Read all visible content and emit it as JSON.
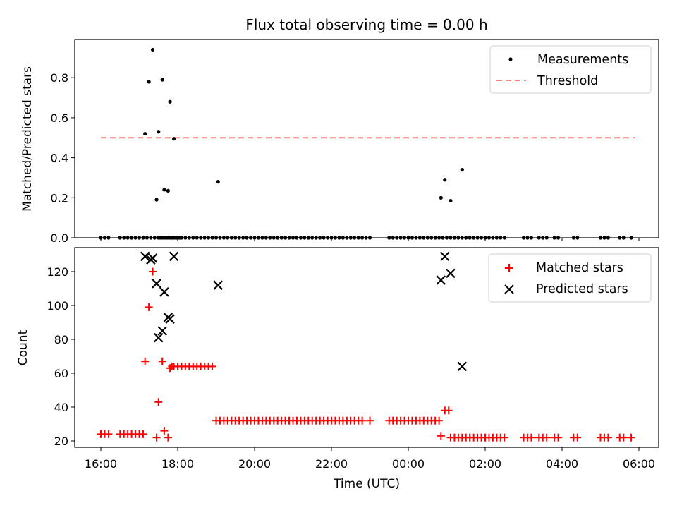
{
  "chart_data": [
    {
      "type": "scatter",
      "title": "Flux total observing time = 0.00 h",
      "ylabel": "Matched/Predicted stars",
      "xlabel": "",
      "ylim": [
        0,
        0.98
      ],
      "yticks": [
        "0.0",
        "0.2",
        "0.4",
        "0.6",
        "0.8"
      ],
      "legend": {
        "placement": "top-right",
        "entries": [
          "Measurements",
          "Threshold"
        ]
      },
      "threshold": {
        "name": "Threshold",
        "value": 0.5,
        "x_range": [
          0.0,
          13.9
        ],
        "color": "#ff7f7f"
      },
      "series": [
        {
          "name": "Measurements",
          "color": "#000000",
          "x": [
            0.0,
            0.1,
            0.2,
            0.5,
            0.6,
            0.7,
            0.8,
            0.9,
            1.0,
            1.1,
            1.2,
            1.3,
            1.4,
            1.5,
            1.55,
            1.6,
            1.65,
            1.7,
            1.75,
            1.8,
            1.85,
            1.9,
            1.95,
            2.0,
            2.05,
            2.1,
            2.2,
            2.3,
            2.4,
            2.5,
            2.6,
            2.7,
            2.8,
            2.9,
            3.0,
            3.1,
            3.2,
            3.3,
            3.4,
            3.5,
            3.6,
            3.7,
            3.8,
            3.9,
            4.0,
            4.1,
            4.2,
            4.3,
            4.4,
            4.5,
            4.6,
            4.7,
            4.8,
            4.9,
            5.0,
            5.1,
            5.2,
            5.3,
            5.4,
            5.5,
            5.6,
            5.7,
            5.8,
            5.9,
            6.0,
            6.1,
            6.2,
            6.3,
            6.4,
            6.5,
            6.6,
            6.7,
            6.8,
            6.9,
            7.0,
            7.5,
            7.6,
            7.7,
            7.8,
            7.9,
            8.0,
            8.1,
            8.2,
            8.3,
            8.4,
            8.5,
            8.6,
            8.7,
            8.8,
            8.9,
            9.0,
            9.1,
            9.2,
            9.3,
            9.4,
            9.5,
            9.6,
            9.7,
            9.8,
            9.9,
            10.0,
            10.1,
            10.2,
            10.3,
            10.4,
            10.5,
            11.0,
            11.1,
            11.2,
            11.4,
            11.5,
            11.6,
            11.8,
            11.9,
            12.3,
            12.4,
            13.0,
            13.1,
            13.2,
            13.5,
            13.6,
            13.8,
            1.15,
            1.25,
            1.35,
            1.45,
            1.5,
            1.6,
            1.65,
            1.75,
            1.8,
            1.9,
            1.98,
            3.05,
            8.85,
            8.95,
            9.1,
            9.4
          ],
          "y": [
            0,
            0,
            0,
            0,
            0,
            0,
            0,
            0,
            0,
            0,
            0,
            0,
            0,
            0,
            0,
            0,
            0,
            0,
            0,
            0,
            0,
            0,
            0,
            0,
            0,
            0,
            0,
            0,
            0,
            0,
            0,
            0,
            0,
            0,
            0,
            0,
            0,
            0,
            0,
            0,
            0,
            0,
            0,
            0,
            0,
            0,
            0,
            0,
            0,
            0,
            0,
            0,
            0,
            0,
            0,
            0,
            0,
            0,
            0,
            0,
            0,
            0,
            0,
            0,
            0,
            0,
            0,
            0,
            0,
            0,
            0,
            0,
            0,
            0,
            0,
            0,
            0,
            0,
            0,
            0,
            0,
            0,
            0,
            0,
            0,
            0,
            0,
            0,
            0,
            0,
            0,
            0,
            0,
            0,
            0,
            0,
            0,
            0,
            0,
            0,
            0,
            0,
            0,
            0,
            0,
            0,
            0,
            0,
            0,
            0,
            0,
            0,
            0,
            0,
            0,
            0,
            0,
            0,
            0,
            0,
            0,
            0,
            0.52,
            0.78,
            0.94,
            0.19,
            0.53,
            0.79,
            0.24,
            0.235,
            0.68,
            0.495,
            0,
            0.28,
            0.2,
            0.29,
            0.185,
            0.34
          ]
        }
      ]
    },
    {
      "type": "scatter",
      "title": "",
      "ylabel": "Count",
      "xlabel": "Time (UTC)",
      "xlim": [
        "15:30",
        "06:30"
      ],
      "xticks": [
        "16:00",
        "18:00",
        "20:00",
        "22:00",
        "00:00",
        "02:00",
        "04:00",
        "06:00"
      ],
      "ylim": [
        17,
        135
      ],
      "yticks": [
        "20",
        "40",
        "60",
        "80",
        "100",
        "120"
      ],
      "legend": {
        "placement": "top-right",
        "entries": [
          "Matched stars",
          "Predicted stars"
        ]
      },
      "series": [
        {
          "name": "Matched stars",
          "color": "#ff0000",
          "marker": "plus",
          "x": [
            0.0,
            0.1,
            0.2,
            0.5,
            0.6,
            0.7,
            0.8,
            0.9,
            1.0,
            1.1,
            1.15,
            1.25,
            1.35,
            1.45,
            1.5,
            1.6,
            1.65,
            1.75,
            1.8,
            1.85,
            1.9,
            2.0,
            2.1,
            2.2,
            2.3,
            2.4,
            2.5,
            2.6,
            2.7,
            2.8,
            2.9,
            3.0,
            3.1,
            3.2,
            3.3,
            3.4,
            3.5,
            3.6,
            3.7,
            3.8,
            3.9,
            4.0,
            4.1,
            4.2,
            4.3,
            4.4,
            4.5,
            4.6,
            4.7,
            4.8,
            4.9,
            5.0,
            5.1,
            5.2,
            5.3,
            5.4,
            5.5,
            5.6,
            5.7,
            5.8,
            5.9,
            6.0,
            6.1,
            6.2,
            6.3,
            6.4,
            6.5,
            6.6,
            6.7,
            6.8,
            7.0,
            7.5,
            7.6,
            7.7,
            7.8,
            7.9,
            8.0,
            8.1,
            8.2,
            8.3,
            8.4,
            8.5,
            8.6,
            8.7,
            8.8,
            8.85,
            8.95,
            9.05,
            9.1,
            9.2,
            9.3,
            9.4,
            9.5,
            9.6,
            9.7,
            9.8,
            9.9,
            10.0,
            10.1,
            10.2,
            10.3,
            10.4,
            10.5,
            11.0,
            11.1,
            11.2,
            11.4,
            11.5,
            11.6,
            11.8,
            11.9,
            12.3,
            12.4,
            13.0,
            13.1,
            13.2,
            13.5,
            13.6,
            13.8
          ],
          "y": [
            24,
            24,
            24,
            24,
            24,
            24,
            24,
            24,
            24,
            24,
            67,
            99,
            120,
            22,
            43,
            67,
            26,
            22,
            63,
            64,
            64,
            64,
            64,
            64,
            64,
            64,
            64,
            64,
            64,
            64,
            64,
            32,
            32,
            32,
            32,
            32,
            32,
            32,
            32,
            32,
            32,
            32,
            32,
            32,
            32,
            32,
            32,
            32,
            32,
            32,
            32,
            32,
            32,
            32,
            32,
            32,
            32,
            32,
            32,
            32,
            32,
            32,
            32,
            32,
            32,
            32,
            32,
            32,
            32,
            32,
            32,
            32,
            32,
            32,
            32,
            32,
            32,
            32,
            32,
            32,
            32,
            32,
            32,
            32,
            32,
            23,
            38,
            38,
            22,
            22,
            22,
            22,
            22,
            22,
            22,
            22,
            22,
            22,
            22,
            22,
            22,
            22,
            22,
            22,
            22,
            22,
            22,
            22,
            22,
            22,
            22,
            22,
            22,
            22,
            22,
            22,
            22,
            22,
            22
          ]
        },
        {
          "name": "Predicted stars",
          "color": "#000000",
          "marker": "x",
          "x": [
            1.15,
            1.3,
            1.35,
            1.45,
            1.5,
            1.6,
            1.65,
            1.75,
            1.8,
            1.9,
            3.05,
            8.85,
            8.95,
            9.1,
            9.4
          ],
          "y": [
            129,
            127,
            128,
            113,
            81,
            85,
            108,
            93,
            92,
            129,
            112,
            115,
            129,
            119,
            64
          ]
        }
      ]
    }
  ]
}
